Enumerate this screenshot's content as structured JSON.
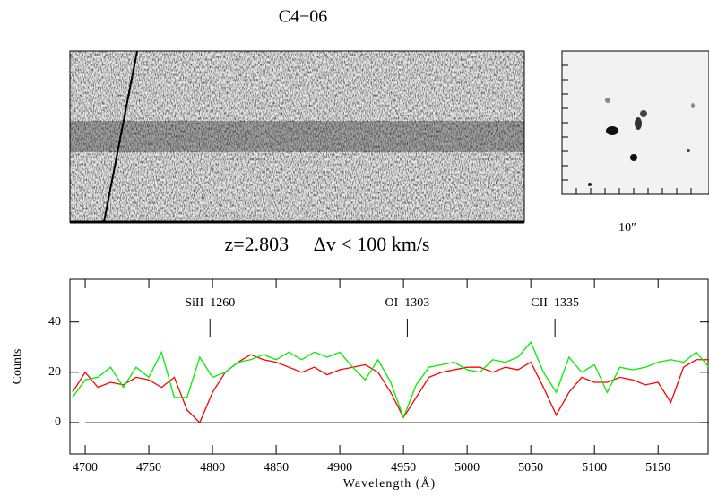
{
  "title": "C4−06",
  "redshift_label": "z=2.803     Δv < 100 km/s",
  "scale_label": "10″",
  "chart_data": {
    "type": "line",
    "xlabel": "Wavelength (Å)",
    "ylabel": "Counts",
    "xlim": [
      4688,
      5190
    ],
    "ylim": [
      -12.5,
      57
    ],
    "xticks": [
      4700,
      4750,
      4800,
      4850,
      4900,
      4950,
      5000,
      5050,
      5100,
      5150
    ],
    "yticks": [
      0,
      20,
      40
    ],
    "x": [
      4690,
      4700,
      4710,
      4720,
      4730,
      4740,
      4750,
      4760,
      4770,
      4780,
      4790,
      4800,
      4810,
      4820,
      4830,
      4840,
      4850,
      4860,
      4870,
      4880,
      4890,
      4900,
      4910,
      4920,
      4930,
      4940,
      4950,
      4960,
      4970,
      4980,
      4990,
      5000,
      5010,
      5020,
      5030,
      5040,
      5050,
      5060,
      5070,
      5080,
      5090,
      5100,
      5110,
      5120,
      5130,
      5140,
      5150,
      5160,
      5170,
      5180,
      5190
    ],
    "series": [
      {
        "color": "#ff0000",
        "values": [
          12,
          20,
          14,
          16,
          15,
          18,
          17,
          14,
          18,
          5,
          0,
          12,
          20,
          24,
          27,
          25,
          24,
          22,
          20,
          22,
          19,
          21,
          22,
          23,
          20,
          12,
          2,
          10,
          18,
          20,
          21,
          22,
          22,
          20,
          22,
          21,
          24,
          14,
          3,
          12,
          18,
          16,
          16,
          18,
          17,
          15,
          16,
          8,
          22,
          25,
          25
        ]
      },
      {
        "color": "#00ee00",
        "values": [
          10,
          17,
          18,
          22,
          14,
          22,
          18,
          28,
          10,
          10,
          26,
          18,
          20,
          24,
          25,
          27,
          25,
          28,
          25,
          28,
          26,
          28,
          22,
          17,
          25,
          16,
          2,
          15,
          22,
          23,
          24,
          21,
          20,
          25,
          24,
          26,
          32,
          20,
          12,
          26,
          20,
          23,
          12,
          22,
          21,
          22,
          24,
          25,
          24,
          28,
          22
        ]
      }
    ],
    "annotations": [
      {
        "text": "SiII  1260",
        "x": 4798
      },
      {
        "text": "OI  1303",
        "x": 4953
      },
      {
        "text": "CII  1335",
        "x": 5069
      }
    ]
  }
}
